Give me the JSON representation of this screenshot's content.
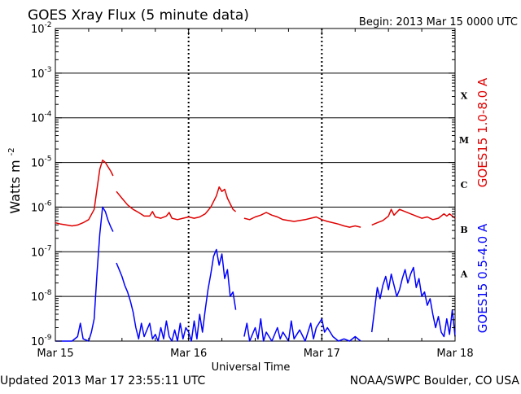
{
  "header": {
    "title": "GOES Xray Flux (5 minute data)",
    "begin": "Begin:  2013 Mar 15 0000 UTC"
  },
  "footer": {
    "updated": "Updated 2013 Mar 17 23:55:11 UTC",
    "credit": "NOAA/SWPC Boulder, CO USA"
  },
  "chart_data": {
    "type": "line",
    "title": "GOES Xray Flux (5 minute data)",
    "xlabel": "Universal Time",
    "ylabel": "Watts m",
    "ylabel_sup": "-2",
    "yscale": "log",
    "ylim": [
      1e-09,
      0.01
    ],
    "xlim": [
      0,
      72
    ],
    "x_unit": "hours since 2013 Mar 15 0000 UTC",
    "x_ticks": [
      {
        "x": 0,
        "label": "Mar 15"
      },
      {
        "x": 24,
        "label": "Mar 16"
      },
      {
        "x": 48,
        "label": "Mar 17"
      },
      {
        "x": 72,
        "label": "Mar 18"
      }
    ],
    "y_ticks": [
      {
        "exp": -9,
        "label": "10",
        "sup": "-9"
      },
      {
        "exp": -8,
        "label": "10",
        "sup": "-8"
      },
      {
        "exp": -7,
        "label": "10",
        "sup": "-7"
      },
      {
        "exp": -6,
        "label": "10",
        "sup": "-6"
      },
      {
        "exp": -5,
        "label": "10",
        "sup": "-5"
      },
      {
        "exp": -4,
        "label": "10",
        "sup": "-4"
      },
      {
        "exp": -3,
        "label": "10",
        "sup": "-3"
      },
      {
        "exp": -2,
        "label": "10",
        "sup": "-2"
      }
    ],
    "flare_classes": [
      {
        "label": "X",
        "exp": -3.5
      },
      {
        "label": "M",
        "exp": -4.5
      },
      {
        "label": "C",
        "exp": -5.5
      },
      {
        "label": "B",
        "exp": -6.5
      },
      {
        "label": "A",
        "exp": -7.5
      }
    ],
    "grid": "horizontal lines at each decade; dashed vertical lines at each day",
    "series": [
      {
        "name": "GOES15 1.0-8.0 A",
        "color": "#e00000",
        "segments": [
          [
            [
              0,
              -6.35
            ],
            [
              1,
              -6.38
            ],
            [
              2,
              -6.4
            ],
            [
              3,
              -6.42
            ],
            [
              4,
              -6.4
            ],
            [
              5,
              -6.35
            ],
            [
              6,
              -6.28
            ],
            [
              7,
              -6.05
            ],
            [
              7.5,
              -5.6
            ],
            [
              8,
              -5.15
            ],
            [
              8.5,
              -4.95
            ],
            [
              9,
              -5.0
            ],
            [
              9.5,
              -5.1
            ],
            [
              10,
              -5.2
            ],
            [
              10.4,
              -5.3
            ]
          ],
          [
            [
              11,
              -5.65
            ],
            [
              12,
              -5.8
            ],
            [
              13,
              -5.95
            ],
            [
              14,
              -6.05
            ],
            [
              15,
              -6.12
            ],
            [
              16,
              -6.2
            ],
            [
              17,
              -6.2
            ],
            [
              17.5,
              -6.1
            ],
            [
              18,
              -6.22
            ],
            [
              19,
              -6.25
            ],
            [
              20,
              -6.2
            ],
            [
              20.5,
              -6.12
            ],
            [
              21,
              -6.25
            ],
            [
              22,
              -6.28
            ],
            [
              23,
              -6.25
            ],
            [
              24,
              -6.22
            ],
            [
              25,
              -6.25
            ],
            [
              26,
              -6.22
            ],
            [
              27,
              -6.15
            ],
            [
              28,
              -6.0
            ],
            [
              29,
              -5.75
            ],
            [
              29.5,
              -5.55
            ],
            [
              30,
              -5.65
            ],
            [
              30.5,
              -5.6
            ],
            [
              31,
              -5.8
            ],
            [
              32,
              -6.05
            ],
            [
              32.5,
              -6.1
            ]
          ],
          [
            [
              34,
              -6.25
            ],
            [
              35,
              -6.28
            ],
            [
              36,
              -6.22
            ],
            [
              37,
              -6.18
            ],
            [
              38,
              -6.12
            ],
            [
              39,
              -6.18
            ],
            [
              40,
              -6.22
            ],
            [
              41,
              -6.28
            ],
            [
              42,
              -6.3
            ],
            [
              43,
              -6.32
            ],
            [
              44,
              -6.3
            ],
            [
              45,
              -6.28
            ],
            [
              46,
              -6.25
            ],
            [
              47,
              -6.22
            ],
            [
              48,
              -6.28
            ],
            [
              49,
              -6.32
            ],
            [
              50,
              -6.35
            ],
            [
              51,
              -6.38
            ],
            [
              52,
              -6.42
            ],
            [
              53,
              -6.45
            ],
            [
              54,
              -6.42
            ],
            [
              55,
              -6.45
            ]
          ],
          [
            [
              57,
              -6.4
            ],
            [
              58,
              -6.35
            ],
            [
              59,
              -6.3
            ],
            [
              60,
              -6.2
            ],
            [
              60.5,
              -6.05
            ],
            [
              61,
              -6.18
            ],
            [
              62,
              -6.05
            ],
            [
              63,
              -6.1
            ],
            [
              64,
              -6.15
            ],
            [
              65,
              -6.2
            ],
            [
              66,
              -6.25
            ],
            [
              67,
              -6.22
            ],
            [
              68,
              -6.28
            ],
            [
              69,
              -6.25
            ],
            [
              70,
              -6.15
            ],
            [
              70.5,
              -6.2
            ],
            [
              71,
              -6.15
            ],
            [
              72,
              -6.25
            ]
          ]
        ]
      },
      {
        "name": "GOES15 0.5-4.0 A",
        "color": "#0000ff",
        "segments": [
          [
            [
              0,
              -9.0
            ],
            [
              1,
              -9.0
            ],
            [
              2,
              -9.0
            ],
            [
              3,
              -9.0
            ],
            [
              4,
              -8.9
            ],
            [
              4.5,
              -8.6
            ],
            [
              5,
              -8.95
            ],
            [
              6,
              -9.0
            ],
            [
              6.5,
              -8.8
            ],
            [
              7,
              -8.5
            ],
            [
              7.5,
              -7.5
            ],
            [
              8,
              -6.6
            ],
            [
              8.5,
              -6.0
            ],
            [
              9,
              -6.1
            ],
            [
              9.5,
              -6.3
            ],
            [
              10,
              -6.45
            ],
            [
              10.4,
              -6.55
            ]
          ],
          [
            [
              11,
              -7.25
            ],
            [
              11.5,
              -7.4
            ],
            [
              12,
              -7.55
            ],
            [
              12.5,
              -7.75
            ],
            [
              13,
              -7.9
            ],
            [
              13.5,
              -8.1
            ],
            [
              14,
              -8.35
            ],
            [
              14.5,
              -8.7
            ],
            [
              15,
              -8.95
            ],
            [
              15.5,
              -8.6
            ],
            [
              16,
              -8.9
            ],
            [
              17,
              -8.6
            ],
            [
              17.5,
              -8.95
            ],
            [
              18,
              -8.85
            ],
            [
              18.5,
              -9.0
            ],
            [
              19,
              -8.7
            ],
            [
              19.5,
              -8.95
            ],
            [
              20,
              -8.55
            ],
            [
              20.5,
              -8.9
            ],
            [
              21,
              -9.0
            ],
            [
              21.5,
              -8.75
            ],
            [
              22,
              -9.0
            ],
            [
              22.5,
              -8.6
            ],
            [
              23,
              -8.95
            ],
            [
              23.5,
              -8.7
            ],
            [
              24,
              -8.8
            ],
            [
              24.5,
              -9.0
            ],
            [
              25,
              -8.55
            ],
            [
              25.5,
              -8.95
            ],
            [
              26,
              -8.4
            ],
            [
              26.5,
              -8.8
            ],
            [
              27,
              -8.3
            ],
            [
              27.5,
              -7.85
            ],
            [
              28,
              -7.5
            ],
            [
              28.5,
              -7.1
            ],
            [
              29,
              -6.95
            ],
            [
              29.5,
              -7.3
            ],
            [
              30,
              -7.05
            ],
            [
              30.5,
              -7.6
            ],
            [
              31,
              -7.4
            ],
            [
              31.5,
              -8.0
            ],
            [
              32,
              -7.9
            ],
            [
              32.5,
              -8.3
            ]
          ],
          [
            [
              34,
              -8.9
            ],
            [
              34.5,
              -8.6
            ],
            [
              35,
              -9.0
            ],
            [
              36,
              -8.7
            ],
            [
              36.5,
              -8.95
            ],
            [
              37,
              -8.5
            ],
            [
              37.5,
              -9.0
            ],
            [
              38,
              -8.8
            ],
            [
              39,
              -9.0
            ],
            [
              40,
              -8.7
            ],
            [
              40.5,
              -8.95
            ],
            [
              41,
              -8.8
            ],
            [
              42,
              -9.0
            ],
            [
              42.5,
              -8.55
            ],
            [
              43,
              -8.95
            ],
            [
              44,
              -8.75
            ],
            [
              45,
              -9.0
            ],
            [
              46,
              -8.6
            ],
            [
              46.5,
              -8.95
            ],
            [
              47,
              -8.7
            ],
            [
              48,
              -8.5
            ],
            [
              48.5,
              -8.8
            ],
            [
              49,
              -8.7
            ],
            [
              50,
              -8.9
            ],
            [
              51,
              -9.0
            ],
            [
              52,
              -8.95
            ],
            [
              53,
              -9.0
            ],
            [
              54,
              -8.9
            ],
            [
              55,
              -9.0
            ]
          ],
          [
            [
              57,
              -8.8
            ],
            [
              57.5,
              -8.3
            ],
            [
              58,
              -7.8
            ],
            [
              58.5,
              -8.05
            ],
            [
              59,
              -7.75
            ],
            [
              59.5,
              -7.55
            ],
            [
              60,
              -7.85
            ],
            [
              60.5,
              -7.5
            ],
            [
              61,
              -7.75
            ],
            [
              61.5,
              -8.0
            ],
            [
              62,
              -7.85
            ],
            [
              62.5,
              -7.6
            ],
            [
              63,
              -7.4
            ],
            [
              63.5,
              -7.7
            ],
            [
              64,
              -7.5
            ],
            [
              64.5,
              -7.35
            ],
            [
              65,
              -7.8
            ],
            [
              65.5,
              -7.6
            ],
            [
              66,
              -8.0
            ],
            [
              66.5,
              -7.9
            ],
            [
              67,
              -8.2
            ],
            [
              67.5,
              -8.05
            ],
            [
              68,
              -8.4
            ],
            [
              68.5,
              -8.7
            ],
            [
              69,
              -8.45
            ],
            [
              69.5,
              -8.8
            ],
            [
              70,
              -8.9
            ],
            [
              70.5,
              -8.5
            ],
            [
              71,
              -8.85
            ],
            [
              71.5,
              -8.3
            ],
            [
              72,
              -8.9
            ]
          ]
        ]
      }
    ]
  }
}
